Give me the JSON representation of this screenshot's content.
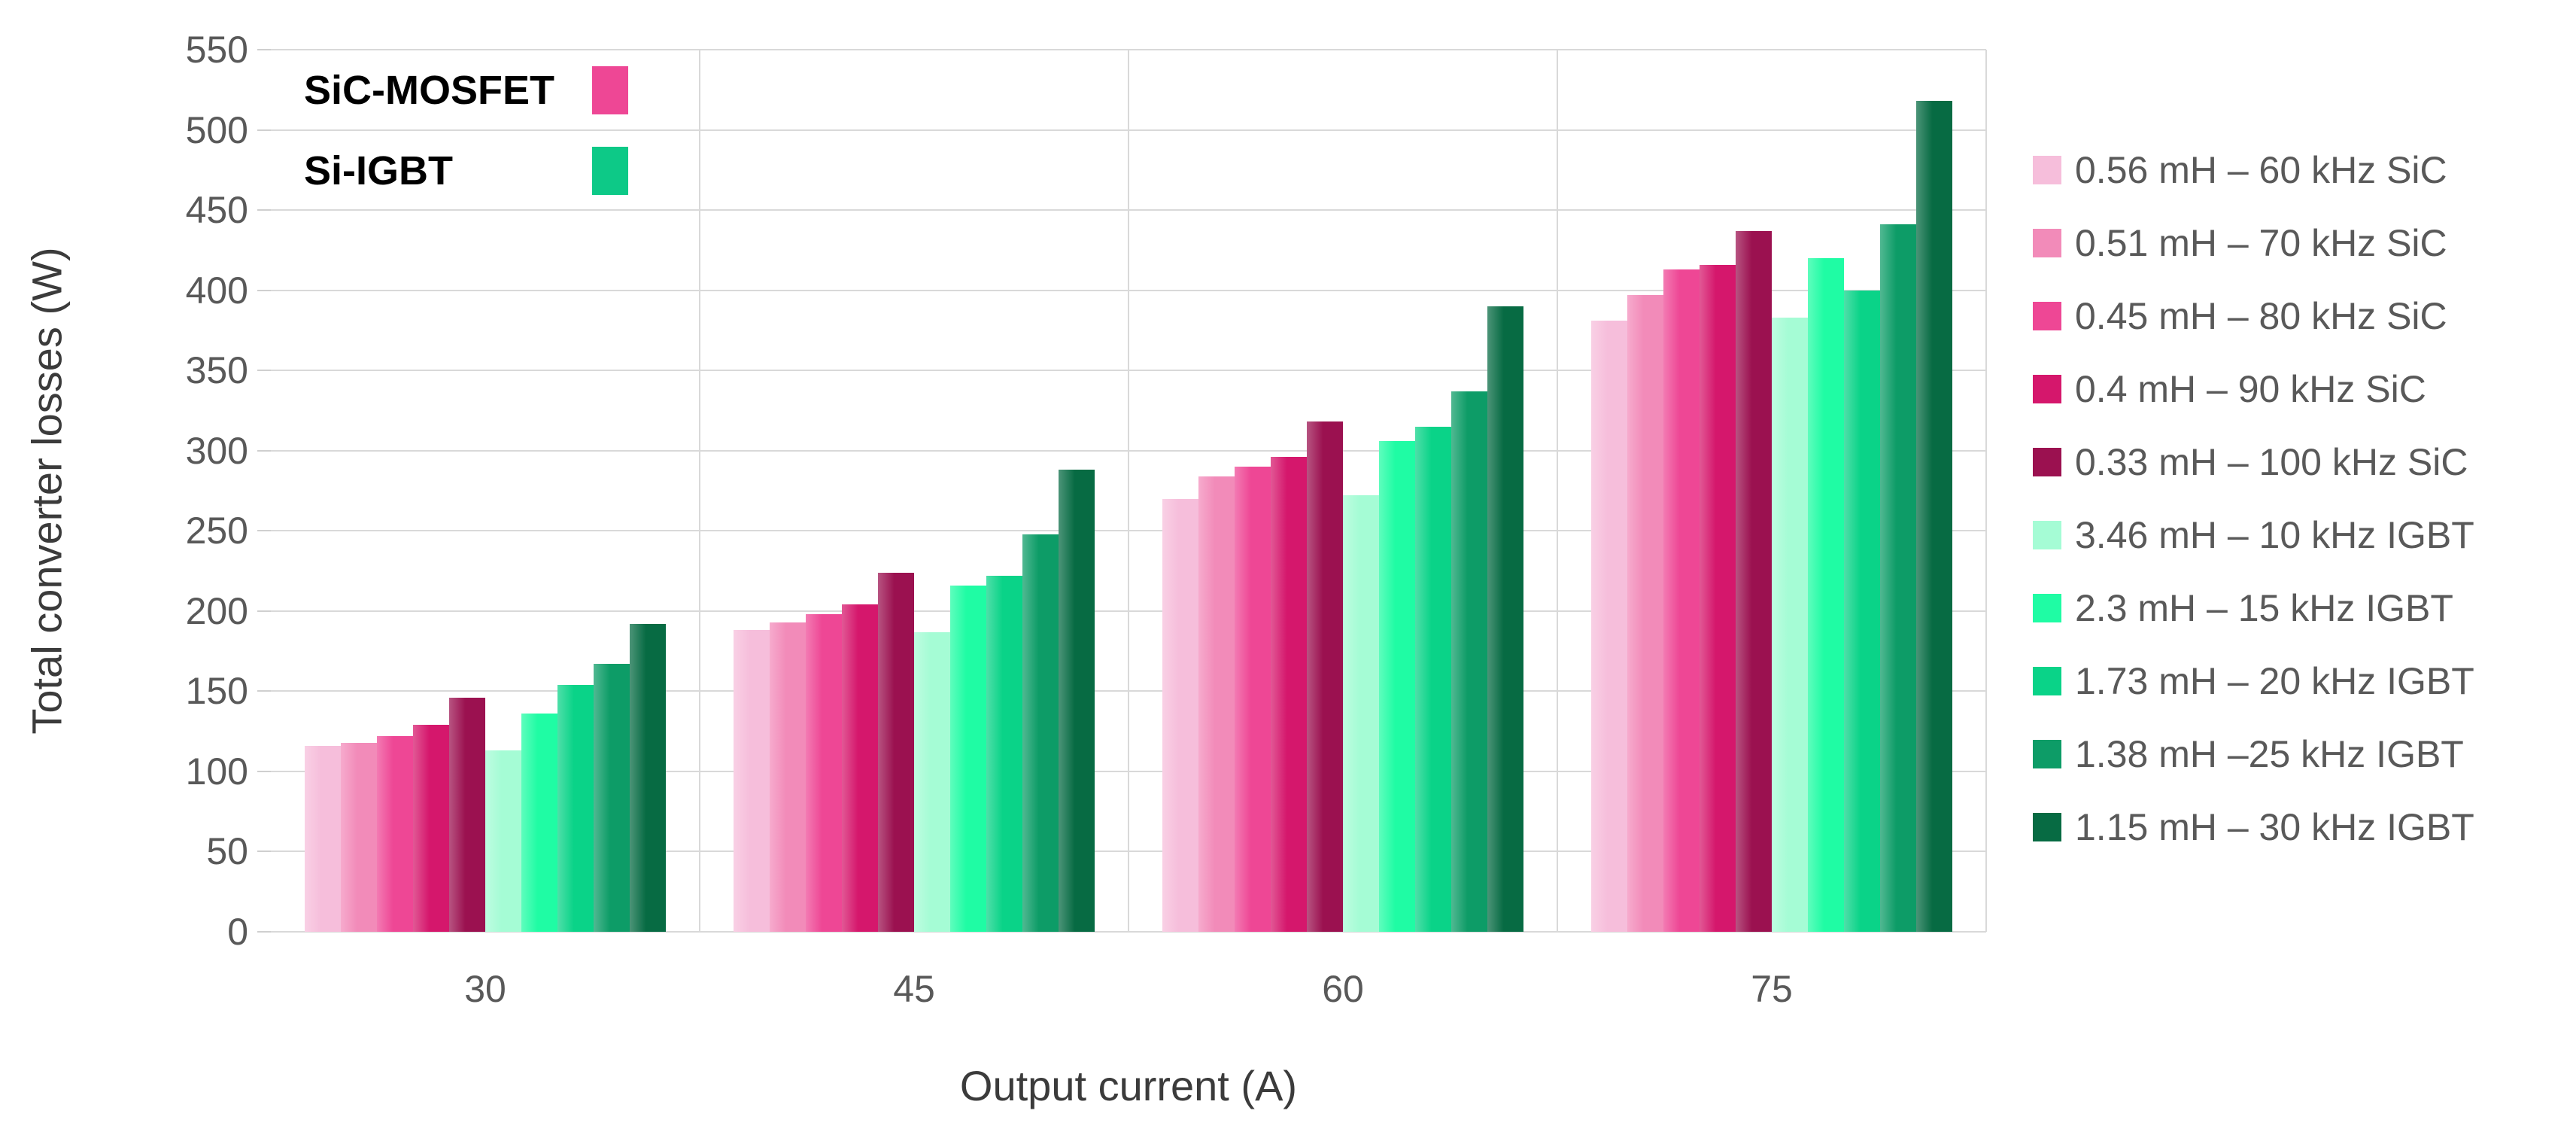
{
  "chart_data": {
    "type": "bar",
    "title": "",
    "xlabel": "Output current (A)",
    "ylabel": "Total converter losses (W)",
    "categories": [
      "30",
      "45",
      "60",
      "75"
    ],
    "ylim": [
      0,
      550
    ],
    "yticks": [
      0,
      50,
      100,
      150,
      200,
      250,
      300,
      350,
      400,
      450,
      500,
      550
    ],
    "grid": "horizontal gridlines + vertical category boundary lines",
    "legend_position": "right",
    "series": [
      {
        "name": "0.56 mH – 60 kHz SiC",
        "color": "#F6BEDB",
        "values": [
          116,
          188,
          270,
          381
        ]
      },
      {
        "name": "0.51 mH – 70 kHz SiC",
        "color": "#F28BB9",
        "values": [
          118,
          193,
          284,
          397
        ]
      },
      {
        "name": "0.45 mH – 80 kHz SiC",
        "color": "#EE4795",
        "values": [
          122,
          198,
          290,
          413
        ]
      },
      {
        "name": "0.4 mH – 90 kHz SiC",
        "color": "#D5176C",
        "values": [
          129,
          204,
          296,
          416
        ]
      },
      {
        "name": "0.33 mH – 100 kHz SiC",
        "color": "#9B1150",
        "values": [
          146,
          224,
          318,
          437
        ]
      },
      {
        "name": "3.46 mH – 10 kHz IGBT",
        "color": "#A5FCD5",
        "values": [
          113,
          187,
          272,
          383
        ]
      },
      {
        "name": "2.3 mH – 15 kHz IGBT",
        "color": "#1FFCA4",
        "values": [
          136,
          216,
          306,
          420
        ]
      },
      {
        "name": "1.73 mH – 20 kHz IGBT",
        "color": "#0AD388",
        "values": [
          154,
          222,
          315,
          400
        ]
      },
      {
        "name": "1.38 mH –25 kHz IGBT",
        "color": "#0D9C67",
        "values": [
          167,
          248,
          337,
          441
        ]
      },
      {
        "name": "1.15 mH – 30 kHz IGBT",
        "color": "#076B43",
        "values": [
          192,
          288,
          390,
          518
        ]
      }
    ],
    "annotations": [
      {
        "label": "SiC-MOSFET",
        "color": "#EE4795"
      },
      {
        "label": "Si-IGBT",
        "color": "#0DC987"
      }
    ]
  },
  "colors": {
    "background": "#FFFFFF",
    "gridline": "#D9D9D9",
    "tick_mark": "#CFCFCF",
    "axis_text": "#595959",
    "title_text": "#3B3B3B"
  }
}
